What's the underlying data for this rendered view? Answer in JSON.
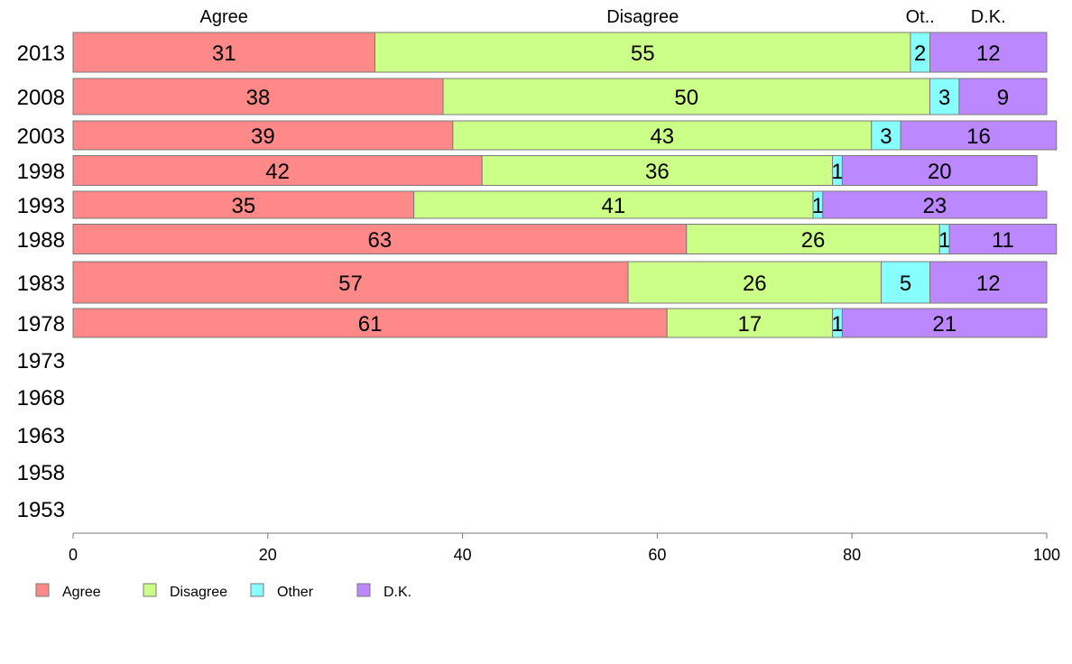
{
  "chart_data": {
    "type": "bar",
    "orientation": "horizontal",
    "stacked": true,
    "categories": [
      "2013",
      "2008",
      "2003",
      "1998",
      "1993",
      "1988",
      "1983",
      "1978",
      "1973",
      "1968",
      "1963",
      "1958",
      "1953"
    ],
    "series": [
      {
        "name": "Agree",
        "color": "#ff8888",
        "values": [
          31,
          38,
          39,
          42,
          35,
          63,
          57,
          61,
          null,
          null,
          null,
          null,
          null
        ]
      },
      {
        "name": "Disagree",
        "color": "#ccff88",
        "values": [
          55,
          50,
          43,
          36,
          41,
          26,
          26,
          17,
          null,
          null,
          null,
          null,
          null
        ]
      },
      {
        "name": "Other",
        "color": "#88ffff",
        "values": [
          2,
          3,
          3,
          1,
          1,
          1,
          5,
          1,
          null,
          null,
          null,
          null,
          null
        ]
      },
      {
        "name": "D.K.",
        "color": "#bb88ff",
        "values": [
          12,
          9,
          16,
          20,
          23,
          11,
          12,
          21,
          null,
          null,
          null,
          null,
          null
        ]
      }
    ],
    "column_headers": [
      "Agree",
      "Disagree",
      "Ot..",
      "D.K."
    ],
    "xlim": [
      0,
      100
    ],
    "xticks": [
      0,
      20,
      40,
      60,
      80,
      100
    ],
    "legend": {
      "position": "bottom-left",
      "entries": [
        "Agree",
        "Disagree",
        "Other",
        "D.K."
      ]
    },
    "grid": false
  }
}
